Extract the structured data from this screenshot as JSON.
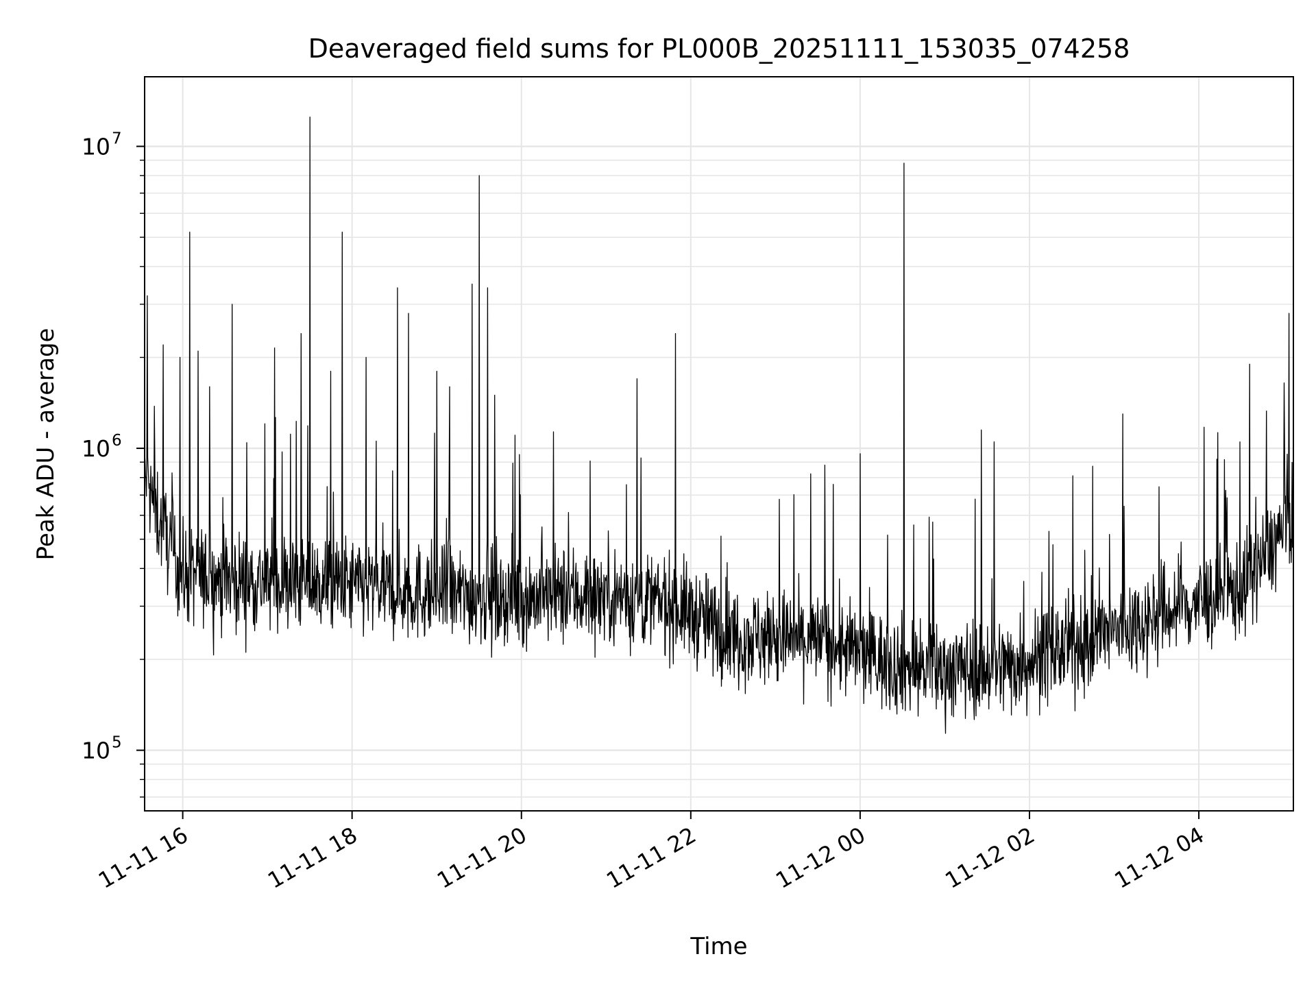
{
  "chart_data": {
    "type": "line",
    "title": "Deaveraged field sums for PL000B_20251111_153035_074258",
    "xlabel": "Time",
    "ylabel": "Peak ADU - average",
    "xlim": [
      "2025-11-11 15:33",
      "2025-11-12 05:07"
    ],
    "ylim": [
      63000,
      17000000
    ],
    "yscale": "log",
    "grid": true,
    "line_color": "#000000",
    "grid_color": "#e6e6e6",
    "x_ticks": [
      {
        "time": "2025-11-11 16:00",
        "label": "11-11 16"
      },
      {
        "time": "2025-11-11 18:00",
        "label": "11-11 18"
      },
      {
        "time": "2025-11-11 20:00",
        "label": "11-11 20"
      },
      {
        "time": "2025-11-11 22:00",
        "label": "11-11 22"
      },
      {
        "time": "2025-11-12 00:00",
        "label": "11-12 00"
      },
      {
        "time": "2025-11-12 02:00",
        "label": "11-12 02"
      },
      {
        "time": "2025-11-12 04:00",
        "label": "11-12 04"
      }
    ],
    "y_ticks": [
      {
        "value": 100000,
        "base": "10",
        "exp": "5"
      },
      {
        "value": 1000000,
        "base": "10",
        "exp": "6"
      },
      {
        "value": 10000000,
        "base": "10",
        "exp": "7"
      }
    ],
    "baseline": [
      {
        "time": "2025-11-11 15:33",
        "value": 800000
      },
      {
        "time": "2025-11-11 15:45",
        "value": 550000
      },
      {
        "time": "2025-11-11 16:00",
        "value": 380000
      },
      {
        "time": "2025-11-11 17:00",
        "value": 360000
      },
      {
        "time": "2025-11-11 18:00",
        "value": 350000
      },
      {
        "time": "2025-11-11 19:00",
        "value": 330000
      },
      {
        "time": "2025-11-11 20:00",
        "value": 320000
      },
      {
        "time": "2025-11-11 21:00",
        "value": 330000
      },
      {
        "time": "2025-11-11 21:50",
        "value": 300000
      },
      {
        "time": "2025-11-11 22:30",
        "value": 240000
      },
      {
        "time": "2025-11-11 23:30",
        "value": 230000
      },
      {
        "time": "2025-11-12 00:30",
        "value": 190000
      },
      {
        "time": "2025-11-12 01:00",
        "value": 185000
      },
      {
        "time": "2025-11-12 01:45",
        "value": 190000
      },
      {
        "time": "2025-11-12 02:30",
        "value": 220000
      },
      {
        "time": "2025-11-12 03:30",
        "value": 280000
      },
      {
        "time": "2025-11-12 04:30",
        "value": 340000
      },
      {
        "time": "2025-11-12 05:07",
        "value": 600000
      }
    ],
    "spikes": [
      {
        "time": "2025-11-11 15:35",
        "value": 3200000
      },
      {
        "time": "2025-11-11 15:46",
        "value": 2200000
      },
      {
        "time": "2025-11-11 15:58",
        "value": 2000000
      },
      {
        "time": "2025-11-11 16:05",
        "value": 5200000
      },
      {
        "time": "2025-11-11 16:11",
        "value": 2100000
      },
      {
        "time": "2025-11-11 16:19",
        "value": 1600000
      },
      {
        "time": "2025-11-11 16:35",
        "value": 3000000
      },
      {
        "time": "2025-11-11 17:05",
        "value": 2150000
      },
      {
        "time": "2025-11-11 17:24",
        "value": 2400000
      },
      {
        "time": "2025-11-11 17:30",
        "value": 12500000
      },
      {
        "time": "2025-11-11 17:45",
        "value": 1800000
      },
      {
        "time": "2025-11-11 17:53",
        "value": 5200000
      },
      {
        "time": "2025-11-11 18:10",
        "value": 2000000
      },
      {
        "time": "2025-11-11 18:32",
        "value": 3400000
      },
      {
        "time": "2025-11-11 18:40",
        "value": 2800000
      },
      {
        "time": "2025-11-11 19:00",
        "value": 1800000
      },
      {
        "time": "2025-11-11 19:09",
        "value": 1600000
      },
      {
        "time": "2025-11-11 19:25",
        "value": 3500000
      },
      {
        "time": "2025-11-11 19:30",
        "value": 8000000
      },
      {
        "time": "2025-11-11 19:36",
        "value": 3400000
      },
      {
        "time": "2025-11-11 19:41",
        "value": 1500000
      },
      {
        "time": "2025-11-11 21:22",
        "value": 1700000
      },
      {
        "time": "2025-11-11 21:49",
        "value": 2400000
      },
      {
        "time": "2025-11-11 23:35",
        "value": 880000
      },
      {
        "time": "2025-11-12 00:00",
        "value": 960000
      },
      {
        "time": "2025-11-12 00:31",
        "value": 8800000
      },
      {
        "time": "2025-11-12 01:26",
        "value": 1150000
      },
      {
        "time": "2025-11-12 01:35",
        "value": 1050000
      },
      {
        "time": "2025-11-12 03:06",
        "value": 1300000
      },
      {
        "time": "2025-11-12 04:29",
        "value": 1050000
      },
      {
        "time": "2025-11-12 04:36",
        "value": 1900000
      },
      {
        "time": "2025-11-12 05:04",
        "value": 2800000
      }
    ]
  }
}
